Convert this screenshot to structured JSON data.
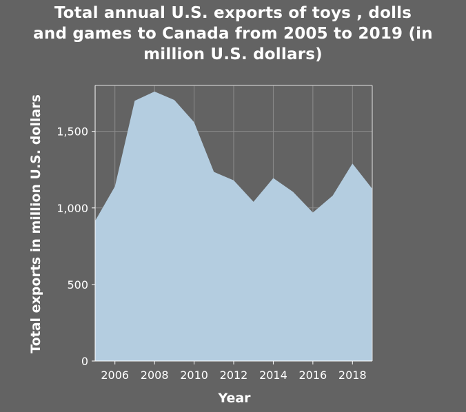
{
  "chart_data": {
    "type": "area",
    "title_lines": [
      "Total annual U.S. exports of toys , dolls",
      "and games to Canada from 2005 to 2019 (in",
      "million U.S. dollars)"
    ],
    "xlabel": "Year",
    "ylabel": "Total exports in million U.S. dollars",
    "x": [
      2005,
      2006,
      2007,
      2008,
      2009,
      2010,
      2011,
      2012,
      2013,
      2014,
      2015,
      2016,
      2017,
      2018,
      2019
    ],
    "values": [
      915,
      1140,
      1700,
      1760,
      1705,
      1560,
      1235,
      1180,
      1040,
      1195,
      1105,
      970,
      1080,
      1290,
      1125
    ],
    "xlim": [
      2005,
      2019
    ],
    "ylim": [
      0,
      1800
    ],
    "x_ticks": [
      2006,
      2008,
      2010,
      2012,
      2014,
      2016,
      2018
    ],
    "x_tick_labels": [
      "2006",
      "2008",
      "2010",
      "2012",
      "2014",
      "2016",
      "2018"
    ],
    "y_ticks": [
      0,
      500,
      1000,
      1500
    ],
    "y_tick_labels": [
      "0",
      "500",
      "1,000",
      "1,500"
    ],
    "grid": true,
    "fill_color": "#b4cde0",
    "grid_color": "#8c8c8c",
    "background_color": "#636363"
  }
}
